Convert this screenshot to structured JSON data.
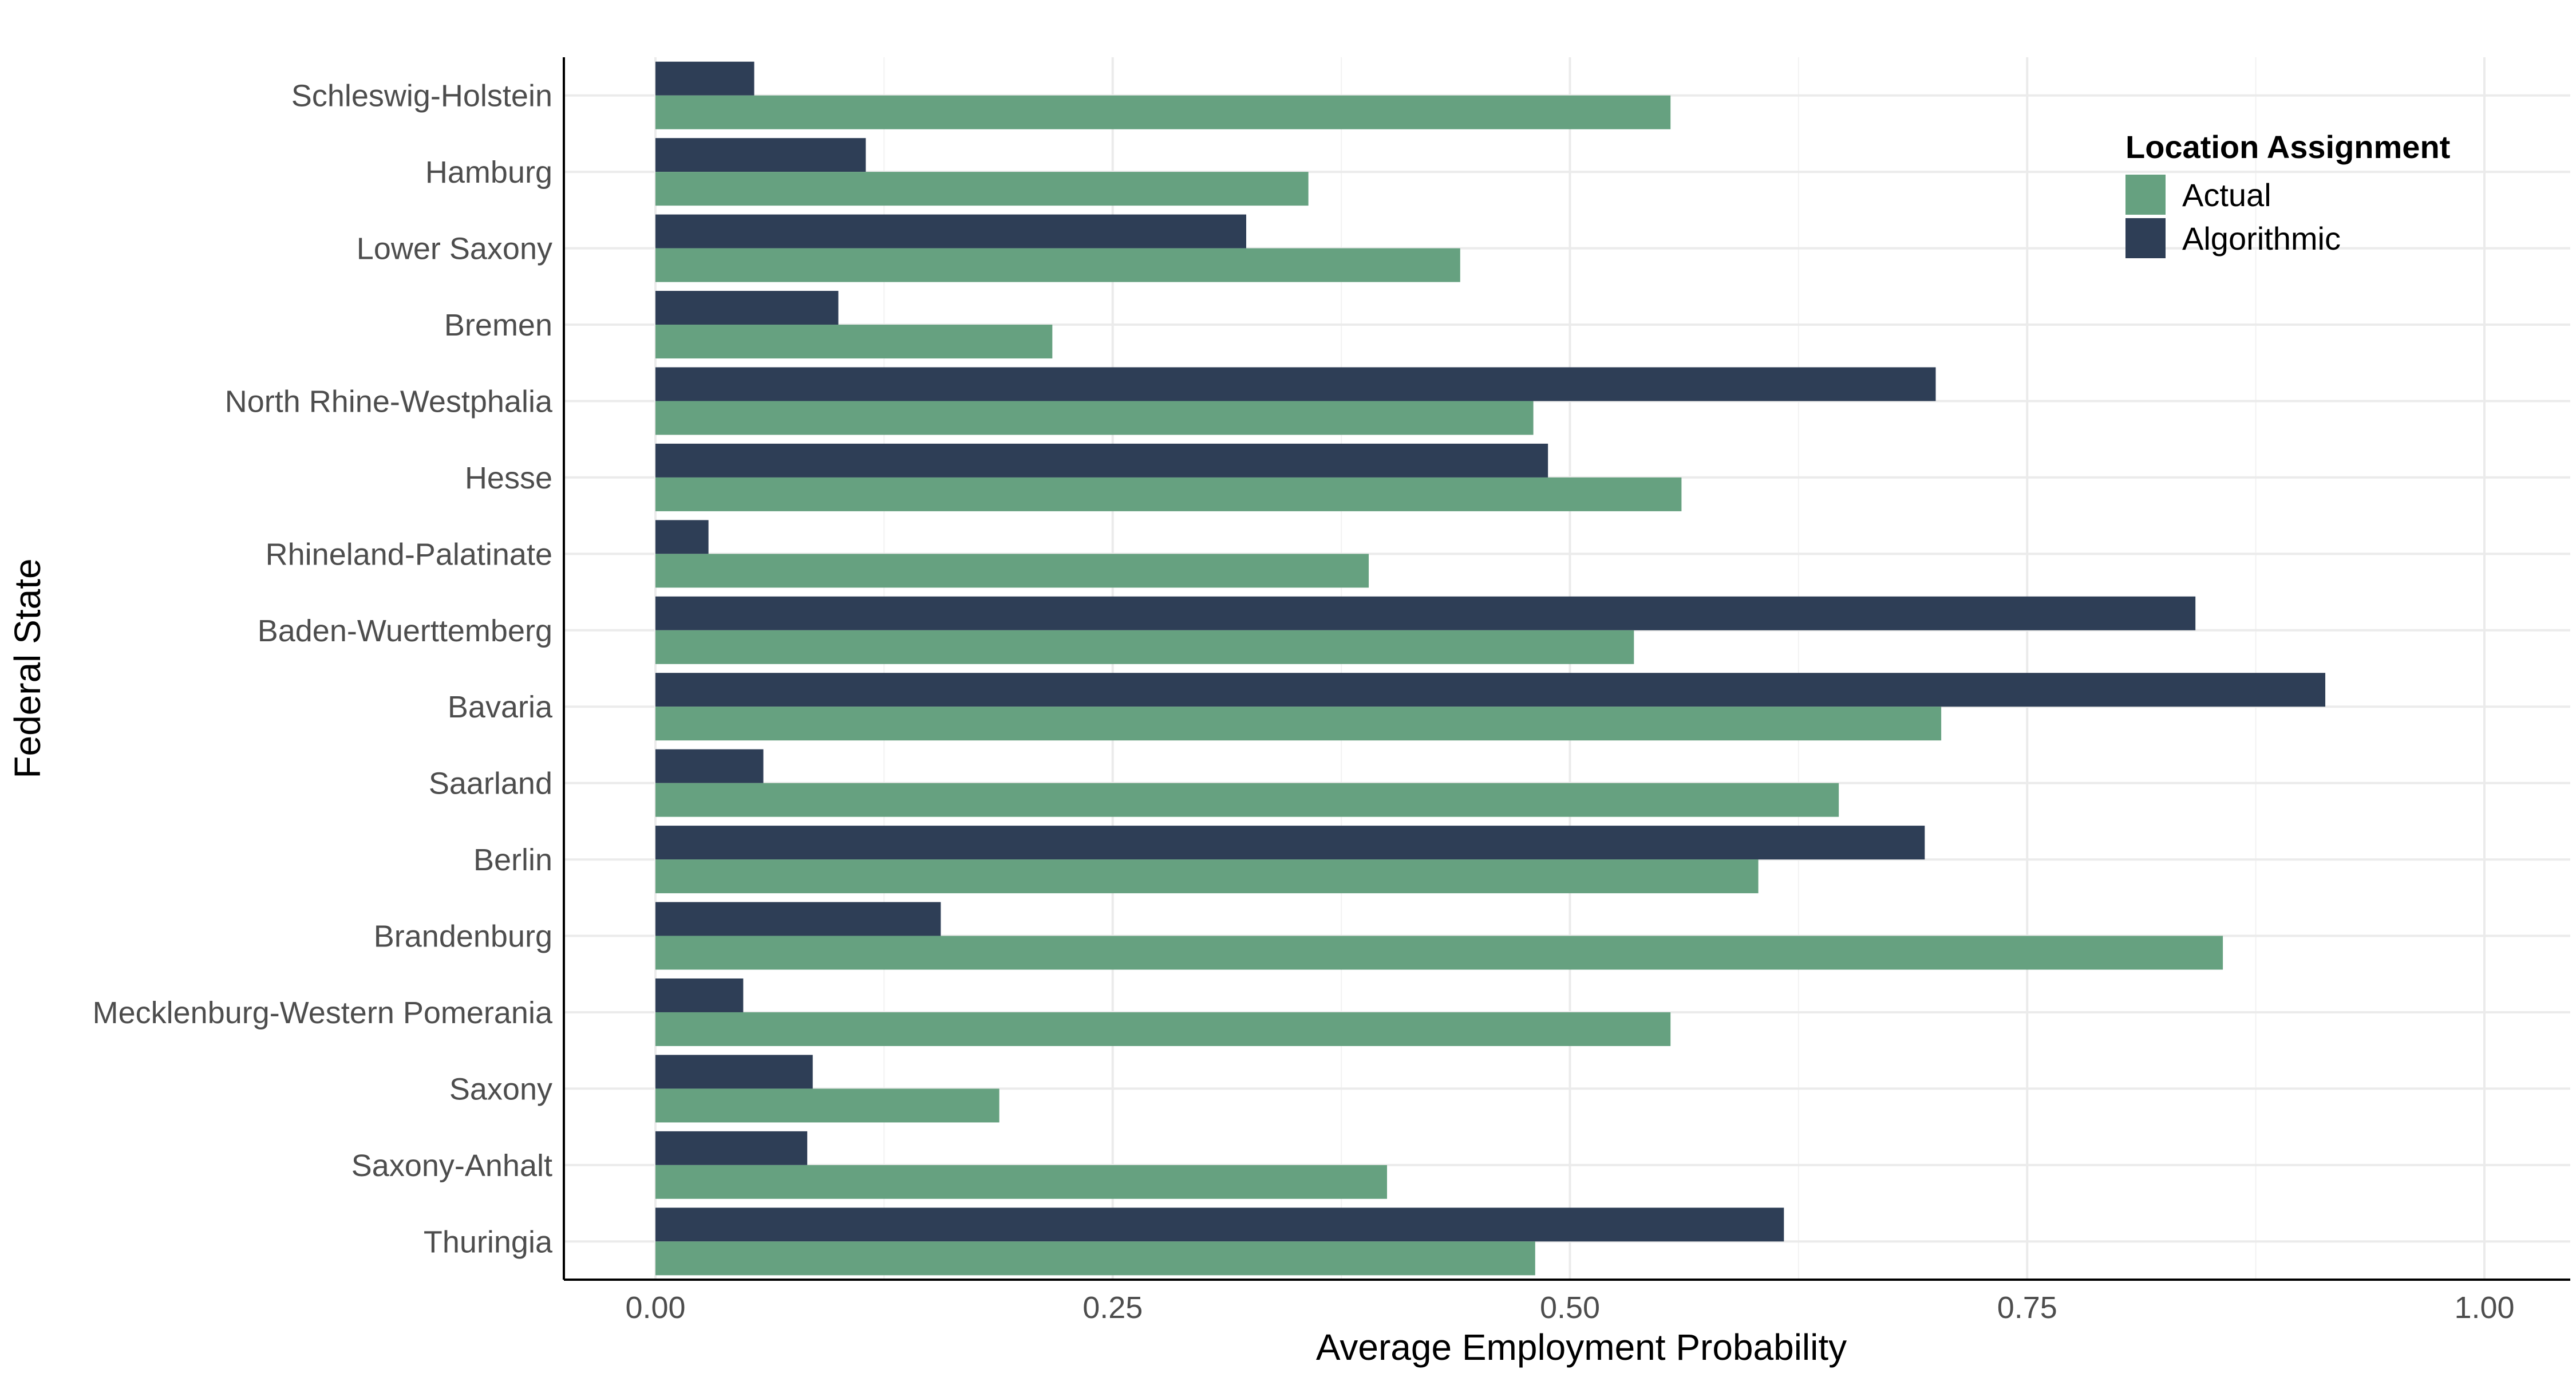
{
  "chart_data": {
    "type": "bar",
    "orientation": "horizontal",
    "xlabel": "Average Employment Probability",
    "ylabel": "Federal State",
    "xlim": [
      0,
      1
    ],
    "x_ticks": [
      "0.00",
      "0.25",
      "0.50",
      "0.75",
      "1.00"
    ],
    "grid": true,
    "legend": {
      "title": "Location Assignment",
      "position": "top-right",
      "entries": [
        "Actual",
        "Algorithmic"
      ]
    },
    "categories": [
      "Schleswig-Holstein",
      "Hamburg",
      "Lower Saxony",
      "Bremen",
      "North Rhine-Westphalia",
      "Hesse",
      "Rhineland-Palatinate",
      "Baden-Wuerttemberg",
      "Bavaria",
      "Saarland",
      "Berlin",
      "Brandenburg",
      "Mecklenburg-Western Pomerania",
      "Saxony",
      "Saxony-Anhalt",
      "Thuringia"
    ],
    "series": [
      {
        "name": "Actual",
        "color": "#66a180",
        "values": [
          0.555,
          0.357,
          0.44,
          0.217,
          0.48,
          0.561,
          0.39,
          0.535,
          0.703,
          0.647,
          0.603,
          0.857,
          0.555,
          0.188,
          0.4,
          0.481
        ]
      },
      {
        "name": "Algorithmic",
        "color": "#2e3e56",
        "values": [
          0.054,
          0.115,
          0.323,
          0.1,
          0.7,
          0.488,
          0.029,
          0.842,
          0.913,
          0.059,
          0.694,
          0.156,
          0.048,
          0.086,
          0.083,
          0.617
        ]
      }
    ]
  }
}
